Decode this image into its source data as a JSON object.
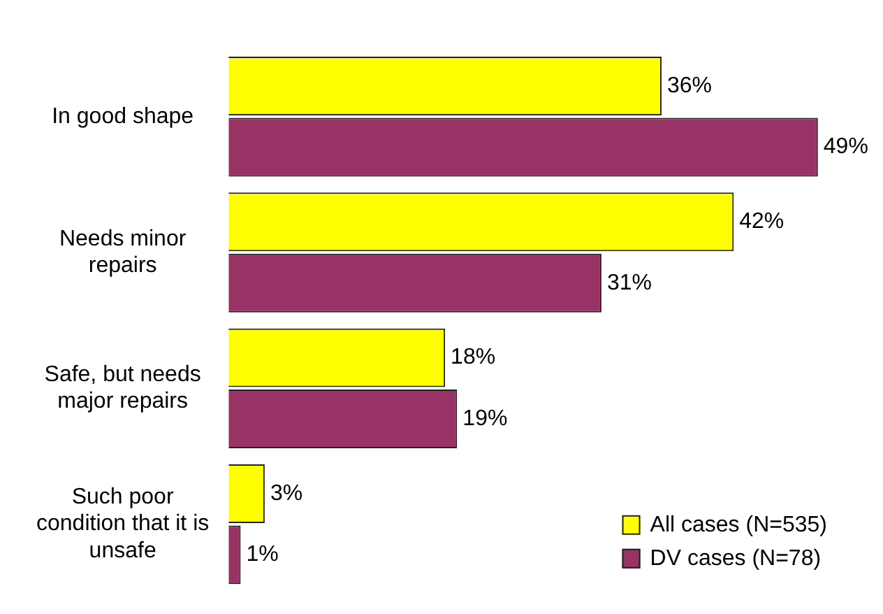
{
  "chart_data": {
    "type": "bar",
    "orientation": "horizontal",
    "categories": [
      "In good shape",
      "Needs minor repairs",
      "Safe, but needs major repairs",
      "Such poor condition that it is unsafe"
    ],
    "series": [
      {
        "name": "All cases (N=535)",
        "color": "#ffff00",
        "values": [
          36,
          42,
          18,
          3
        ],
        "value_labels": [
          "36%",
          "42%",
          "18%",
          "3%"
        ]
      },
      {
        "name": "DV cases (N=78)",
        "color": "#993366",
        "values": [
          49,
          31,
          19,
          1
        ],
        "value_labels": [
          "49%",
          "31%",
          "19%",
          "1%"
        ]
      }
    ],
    "legend": "bottom right"
  }
}
